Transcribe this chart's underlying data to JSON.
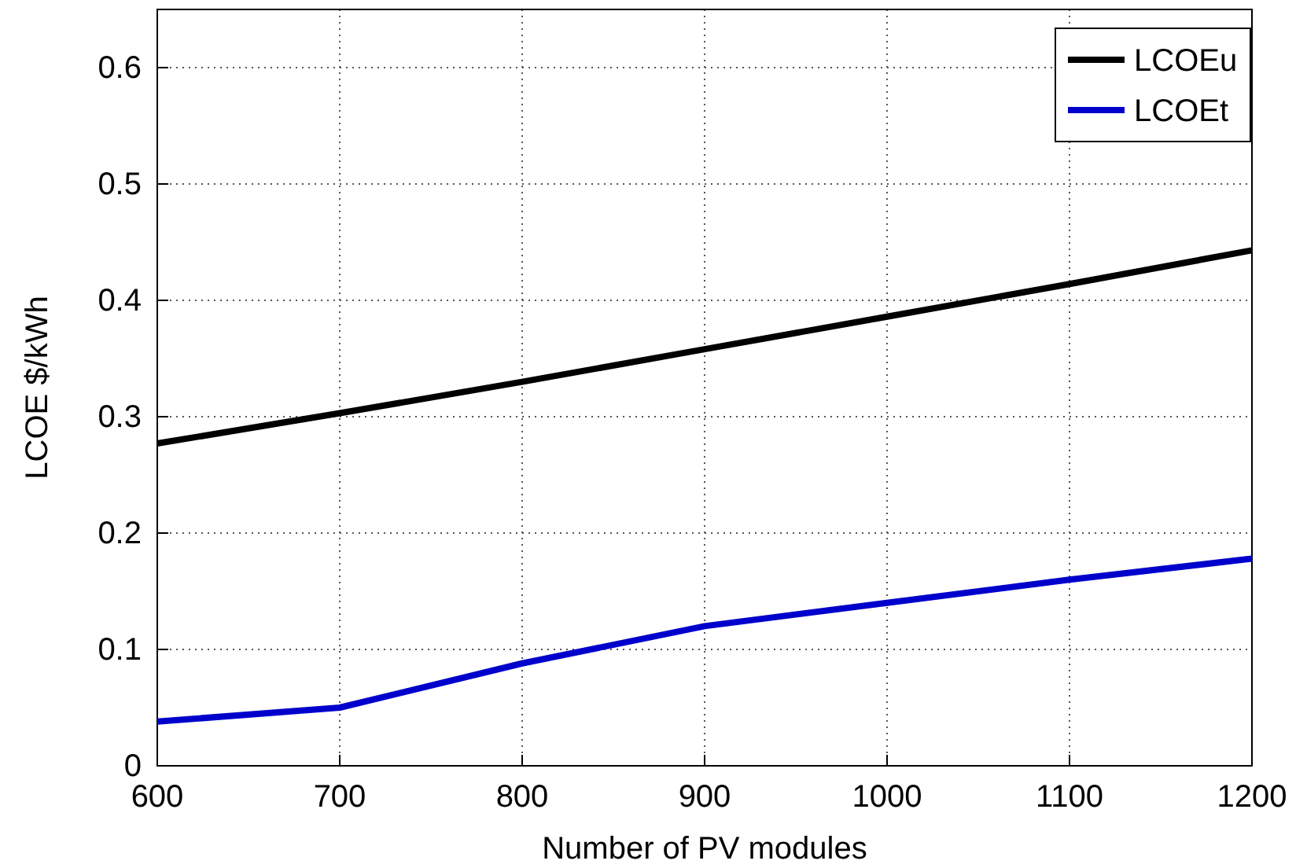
{
  "chart_data": {
    "type": "line",
    "xlabel": "Number of PV modules",
    "ylabel": "LCOE $/kWh",
    "x": [
      600,
      700,
      800,
      900,
      1000,
      1100,
      1200
    ],
    "series": [
      {
        "name": "LCOEu",
        "color": "#000000",
        "values": [
          0.277,
          0.303,
          0.33,
          0.358,
          0.386,
          0.414,
          0.443
        ]
      },
      {
        "name": "LCOEt",
        "color": "#0000cc",
        "values": [
          0.038,
          0.05,
          0.088,
          0.12,
          0.14,
          0.16,
          0.178
        ]
      }
    ],
    "xlim": [
      600,
      1200
    ],
    "xticks": [
      600,
      700,
      800,
      900,
      1000,
      1100,
      1200
    ],
    "ylim": [
      0,
      0.65
    ],
    "yticks": [
      0,
      0.1,
      0.2,
      0.3,
      0.4,
      0.5,
      0.6
    ],
    "grid": true,
    "legend": "top right",
    "line_style": "solid",
    "marker": "none"
  }
}
